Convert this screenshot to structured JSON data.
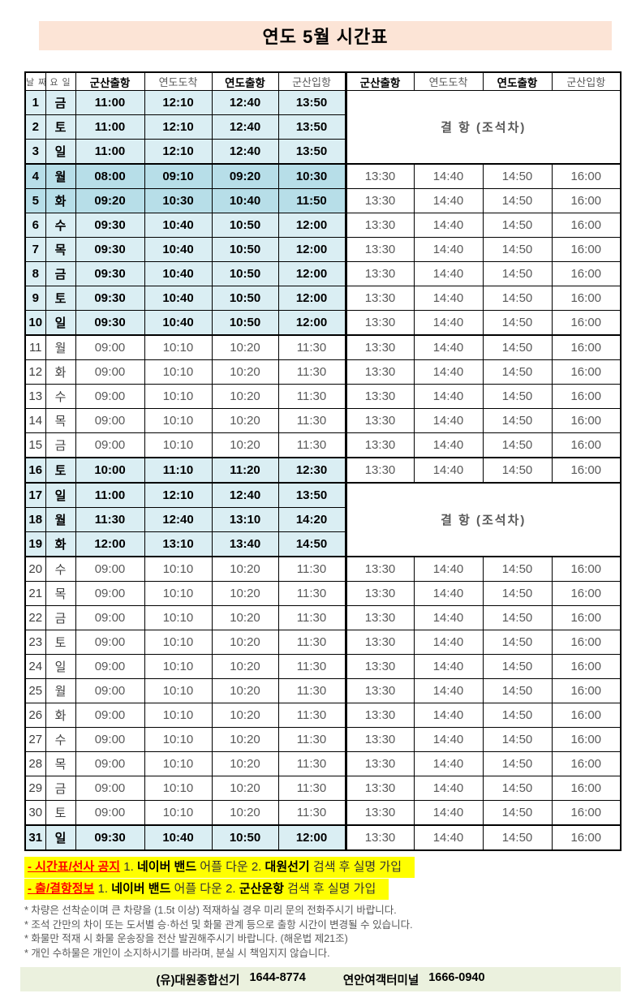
{
  "title": "연도 5월 시간표",
  "colors": {
    "title_bg": "#fce4d6",
    "highlight_bg": "#daeef3",
    "highlight_dark_bg": "#b7dee8",
    "cancel_text": "#ff0000",
    "notice_bg": "#ffff00",
    "footer_bg": "#ebf1de"
  },
  "table": {
    "headers": [
      "날 짜",
      "요 일",
      "군산출항",
      "연도도착",
      "연도출항",
      "군산입항",
      "군산출항",
      "연도도착",
      "연도출항",
      "군산입항"
    ],
    "cancellations": [
      {
        "start_index": 0,
        "row_span": 3,
        "label": "결 항 (조석차)"
      },
      {
        "start_index": 16,
        "row_span": 3,
        "label": "결 항 (조석차)"
      }
    ],
    "rows": [
      {
        "date": "1",
        "day": "금",
        "am": [
          "11:00",
          "12:10",
          "12:40",
          "13:50"
        ],
        "pm": null,
        "hl": true
      },
      {
        "date": "2",
        "day": "토",
        "am": [
          "11:00",
          "12:10",
          "12:40",
          "13:50"
        ],
        "pm": null,
        "hl": true
      },
      {
        "date": "3",
        "day": "일",
        "am": [
          "11:00",
          "12:10",
          "12:40",
          "13:50"
        ],
        "pm": null,
        "hl": true
      },
      {
        "date": "4",
        "day": "월",
        "am": [
          "08:00",
          "09:10",
          "09:20",
          "10:30"
        ],
        "pm": [
          "13:30",
          "14:40",
          "14:50",
          "16:00"
        ],
        "hl": true,
        "dark": true,
        "sep": true
      },
      {
        "date": "5",
        "day": "화",
        "am": [
          "09:20",
          "10:30",
          "10:40",
          "11:50"
        ],
        "pm": [
          "13:30",
          "14:40",
          "14:50",
          "16:00"
        ],
        "hl": true,
        "dark": true
      },
      {
        "date": "6",
        "day": "수",
        "am": [
          "09:30",
          "10:40",
          "10:50",
          "12:00"
        ],
        "pm": [
          "13:30",
          "14:40",
          "14:50",
          "16:00"
        ],
        "hl": true
      },
      {
        "date": "7",
        "day": "목",
        "am": [
          "09:30",
          "10:40",
          "10:50",
          "12:00"
        ],
        "pm": [
          "13:30",
          "14:40",
          "14:50",
          "16:00"
        ],
        "hl": true
      },
      {
        "date": "8",
        "day": "금",
        "am": [
          "09:30",
          "10:40",
          "10:50",
          "12:00"
        ],
        "pm": [
          "13:30",
          "14:40",
          "14:50",
          "16:00"
        ],
        "hl": true
      },
      {
        "date": "9",
        "day": "토",
        "am": [
          "09:30",
          "10:40",
          "10:50",
          "12:00"
        ],
        "pm": [
          "13:30",
          "14:40",
          "14:50",
          "16:00"
        ],
        "hl": true
      },
      {
        "date": "10",
        "day": "일",
        "am": [
          "09:30",
          "10:40",
          "10:50",
          "12:00"
        ],
        "pm": [
          "13:30",
          "14:40",
          "14:50",
          "16:00"
        ],
        "hl": true
      },
      {
        "date": "11",
        "day": "월",
        "am": [
          "09:00",
          "10:10",
          "10:20",
          "11:30"
        ],
        "pm": [
          "13:30",
          "14:40",
          "14:50",
          "16:00"
        ],
        "hl": false,
        "sep": true
      },
      {
        "date": "12",
        "day": "화",
        "am": [
          "09:00",
          "10:10",
          "10:20",
          "11:30"
        ],
        "pm": [
          "13:30",
          "14:40",
          "14:50",
          "16:00"
        ],
        "hl": false
      },
      {
        "date": "13",
        "day": "수",
        "am": [
          "09:00",
          "10:10",
          "10:20",
          "11:30"
        ],
        "pm": [
          "13:30",
          "14:40",
          "14:50",
          "16:00"
        ],
        "hl": false
      },
      {
        "date": "14",
        "day": "목",
        "am": [
          "09:00",
          "10:10",
          "10:20",
          "11:30"
        ],
        "pm": [
          "13:30",
          "14:40",
          "14:50",
          "16:00"
        ],
        "hl": false
      },
      {
        "date": "15",
        "day": "금",
        "am": [
          "09:00",
          "10:10",
          "10:20",
          "11:30"
        ],
        "pm": [
          "13:30",
          "14:40",
          "14:50",
          "16:00"
        ],
        "hl": false
      },
      {
        "date": "16",
        "day": "토",
        "am": [
          "10:00",
          "11:10",
          "11:20",
          "12:30"
        ],
        "pm": [
          "13:30",
          "14:40",
          "14:50",
          "16:00"
        ],
        "hl": true,
        "sep": true
      },
      {
        "date": "17",
        "day": "일",
        "am": [
          "11:00",
          "12:10",
          "12:40",
          "13:50"
        ],
        "pm": null,
        "hl": true,
        "sep": true
      },
      {
        "date": "18",
        "day": "월",
        "am": [
          "11:30",
          "12:40",
          "13:10",
          "14:20"
        ],
        "pm": null,
        "hl": true
      },
      {
        "date": "19",
        "day": "화",
        "am": [
          "12:00",
          "13:10",
          "13:40",
          "14:50"
        ],
        "pm": null,
        "hl": true
      },
      {
        "date": "20",
        "day": "수",
        "am": [
          "09:00",
          "10:10",
          "10:20",
          "11:30"
        ],
        "pm": [
          "13:30",
          "14:40",
          "14:50",
          "16:00"
        ],
        "hl": false,
        "sep": true
      },
      {
        "date": "21",
        "day": "목",
        "am": [
          "09:00",
          "10:10",
          "10:20",
          "11:30"
        ],
        "pm": [
          "13:30",
          "14:40",
          "14:50",
          "16:00"
        ],
        "hl": false
      },
      {
        "date": "22",
        "day": "금",
        "am": [
          "09:00",
          "10:10",
          "10:20",
          "11:30"
        ],
        "pm": [
          "13:30",
          "14:40",
          "14:50",
          "16:00"
        ],
        "hl": false
      },
      {
        "date": "23",
        "day": "토",
        "am": [
          "09:00",
          "10:10",
          "10:20",
          "11:30"
        ],
        "pm": [
          "13:30",
          "14:40",
          "14:50",
          "16:00"
        ],
        "hl": false
      },
      {
        "date": "24",
        "day": "일",
        "am": [
          "09:00",
          "10:10",
          "10:20",
          "11:30"
        ],
        "pm": [
          "13:30",
          "14:40",
          "14:50",
          "16:00"
        ],
        "hl": false
      },
      {
        "date": "25",
        "day": "월",
        "am": [
          "09:00",
          "10:10",
          "10:20",
          "11:30"
        ],
        "pm": [
          "13:30",
          "14:40",
          "14:50",
          "16:00"
        ],
        "hl": false
      },
      {
        "date": "26",
        "day": "화",
        "am": [
          "09:00",
          "10:10",
          "10:20",
          "11:30"
        ],
        "pm": [
          "13:30",
          "14:40",
          "14:50",
          "16:00"
        ],
        "hl": false
      },
      {
        "date": "27",
        "day": "수",
        "am": [
          "09:00",
          "10:10",
          "10:20",
          "11:30"
        ],
        "pm": [
          "13:30",
          "14:40",
          "14:50",
          "16:00"
        ],
        "hl": false
      },
      {
        "date": "28",
        "day": "목",
        "am": [
          "09:00",
          "10:10",
          "10:20",
          "11:30"
        ],
        "pm": [
          "13:30",
          "14:40",
          "14:50",
          "16:00"
        ],
        "hl": false
      },
      {
        "date": "29",
        "day": "금",
        "am": [
          "09:00",
          "10:10",
          "10:20",
          "11:30"
        ],
        "pm": [
          "13:30",
          "14:40",
          "14:50",
          "16:00"
        ],
        "hl": false
      },
      {
        "date": "30",
        "day": "토",
        "am": [
          "09:00",
          "10:10",
          "10:20",
          "11:30"
        ],
        "pm": [
          "13:30",
          "14:40",
          "14:50",
          "16:00"
        ],
        "hl": false
      },
      {
        "date": "31",
        "day": "일",
        "am": [
          "09:30",
          "10:40",
          "10:50",
          "12:00"
        ],
        "pm": [
          "13:30",
          "14:40",
          "14:50",
          "16:00"
        ],
        "hl": true,
        "sep": true
      }
    ]
  },
  "notices": [
    {
      "segments": [
        {
          "t": "- 시간표/선사 공지",
          "s": "label"
        },
        {
          "t": " 1. ",
          "s": "n"
        },
        {
          "t": "네이버 밴드",
          "s": "b"
        },
        {
          "t": " 어플 다운 2. ",
          "s": "n"
        },
        {
          "t": "대원선기",
          "s": "b"
        },
        {
          "t": " 검색 후 실명 가입",
          "s": "n"
        }
      ]
    },
    {
      "segments": [
        {
          "t": "- 출/결항정보",
          "s": "label"
        },
        {
          "t": " 1. ",
          "s": "n"
        },
        {
          "t": "네이버 밴드",
          "s": "b"
        },
        {
          "t": " 어플 다운 2. ",
          "s": "n"
        },
        {
          "t": "군산운항",
          "s": "b"
        },
        {
          "t": " 검색 후 실명 가입",
          "s": "n"
        }
      ]
    }
  ],
  "footnotes": [
    "* 차량은 선착순이며 큰 차량을 (1.5t 이상) 적재하실 경우 미리 문의 전화주시기 바랍니다.",
    "* 조석 간만의 차이 또는 도서별 승·하선 및 화물 관계 등으로 출항 시간이 변경될 수 있습니다.",
    "* 화물만 적재 시 화물 운송장을 전산 발권해주시기 바랍니다. (해운법 제21조)",
    "* 개인 수하물은 개인이 소지하시기를 바라며, 분실 시 책임지지 않습니다."
  ],
  "footer": {
    "company": "(유)대원종합선기",
    "company_phone": "1644-8774",
    "terminal": "연안여객터미널",
    "terminal_phone": "1666-0940"
  }
}
